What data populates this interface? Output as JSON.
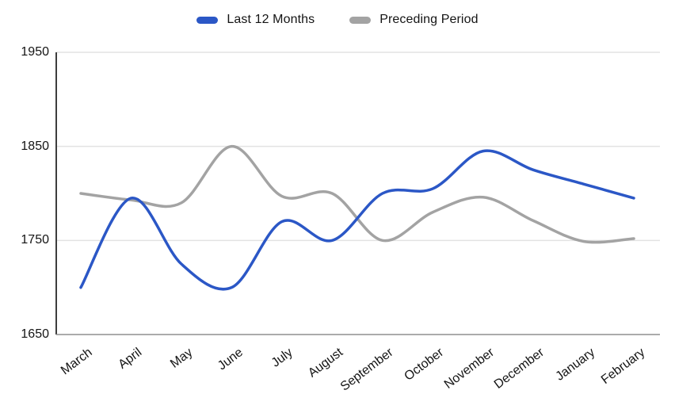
{
  "legend": {
    "items": [
      {
        "label": "Last 12 Months",
        "color": "#2b57c6"
      },
      {
        "label": "Preceding Period",
        "color": "#a3a3a3"
      }
    ]
  },
  "chart_data": {
    "type": "line",
    "title": "",
    "xlabel": "",
    "ylabel": "",
    "categories": [
      "March",
      "April",
      "May",
      "June",
      "July",
      "August",
      "September",
      "October",
      "November",
      "December",
      "January",
      "February"
    ],
    "series": [
      {
        "name": "Last 12 Months",
        "color": "#2b57c6",
        "values": [
          1700,
          1795,
          1725,
          1700,
          1770,
          1750,
          1800,
          1805,
          1845,
          1825,
          1810,
          1795
        ]
      },
      {
        "name": "Preceding Period",
        "color": "#a3a3a3",
        "values": [
          1800,
          1793,
          1790,
          1850,
          1797,
          1800,
          1750,
          1780,
          1796,
          1771,
          1749,
          1752
        ]
      }
    ],
    "ylim": [
      1650,
      1950
    ],
    "yticks": [
      1950,
      1850,
      1750,
      1650
    ],
    "grid": "horizontal",
    "legend_position": "top-center",
    "smooth": true,
    "colors": {
      "gridline": "#e3e3e3",
      "y_axis_line": "#3d3d3d",
      "x_axis_line": "#8f8f8f",
      "text": "#141414"
    }
  }
}
